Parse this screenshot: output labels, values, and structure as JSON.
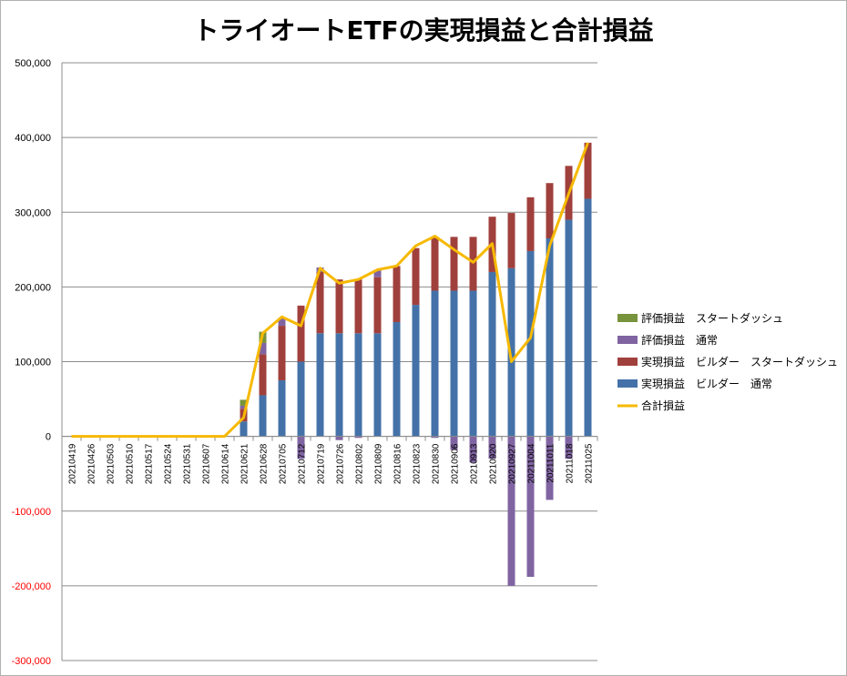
{
  "chart_data": {
    "type": "bar",
    "title": "トライオートETFの実現損益と合計損益",
    "ylim": [
      -300000,
      500000
    ],
    "yticks": [
      500000,
      400000,
      300000,
      200000,
      100000,
      0,
      -100000,
      -200000,
      -300000
    ],
    "ytick_labels": [
      "500,000",
      "400,000",
      "300,000",
      "200,000",
      "100,000",
      "0",
      "-100,000",
      "-200,000",
      "-300,000"
    ],
    "negative_tick_color": "#ff0000",
    "grid": true,
    "legend_position": "right",
    "categories": [
      "20210419",
      "20210426",
      "20210503",
      "20210510",
      "20210517",
      "20210524",
      "20210531",
      "20210607",
      "20210614",
      "20210621",
      "20210628",
      "20210705",
      "20210712",
      "20210719",
      "20210726",
      "20210802",
      "20210809",
      "20210816",
      "20210823",
      "20210830",
      "20210906",
      "20210913",
      "20210920",
      "20210927",
      "20211004",
      "20211011",
      "20211018",
      "20211025"
    ],
    "series": [
      {
        "name": "実現損益 ビルダー 通常",
        "color": "#4472a8",
        "kind": "bar",
        "values": [
          0,
          0,
          0,
          0,
          0,
          0,
          0,
          0,
          0,
          20000,
          55000,
          75000,
          100000,
          138000,
          138000,
          138000,
          138000,
          153000,
          176000,
          195000,
          195000,
          195000,
          220000,
          225000,
          248000,
          265000,
          290000,
          318000
        ]
      },
      {
        "name": "実現損益 ビルダー スタートダッシュ",
        "color": "#a0403c",
        "kind": "bar",
        "values": [
          0,
          0,
          0,
          0,
          0,
          0,
          0,
          0,
          0,
          17000,
          55000,
          73000,
          75000,
          82000,
          72000,
          72000,
          75000,
          75000,
          76000,
          72000,
          72000,
          72000,
          74000,
          74000,
          72000,
          74000,
          72000,
          75000
        ]
      },
      {
        "name": "評価損益 通常",
        "color": "#8064a2",
        "kind": "bar",
        "values": [
          0,
          0,
          0,
          0,
          0,
          0,
          0,
          0,
          0,
          4000,
          15000,
          10000,
          -30000,
          6000,
          -5000,
          -2000,
          10000,
          0,
          0,
          -2000,
          -18000,
          -35000,
          -30000,
          -200000,
          -188000,
          -85000,
          -30000,
          0
        ]
      },
      {
        "name": "評価損益 スタートダッシュ",
        "color": "#77933c",
        "kind": "bar",
        "values": [
          0,
          0,
          0,
          0,
          0,
          0,
          0,
          0,
          0,
          8000,
          15000,
          0,
          0,
          0,
          0,
          0,
          0,
          0,
          0,
          0,
          0,
          0,
          0,
          0,
          0,
          0,
          0,
          0
        ]
      },
      {
        "name": "合計損益",
        "color": "#f6b900",
        "kind": "line",
        "values": [
          0,
          0,
          0,
          0,
          0,
          0,
          0,
          0,
          0,
          25000,
          138000,
          160000,
          148000,
          225000,
          205000,
          210000,
          223000,
          228000,
          255000,
          268000,
          250000,
          233000,
          258000,
          100000,
          132000,
          255000,
          325000,
          393000
        ]
      }
    ]
  },
  "legend": {
    "items": [
      {
        "label": "評価損益　スタートダッシュ",
        "color": "#77933c",
        "kind": "bar"
      },
      {
        "label": "評価損益　通常",
        "color": "#8064a2",
        "kind": "bar"
      },
      {
        "label": "実現損益　ビルダー　スタートダッシュ",
        "color": "#a0403c",
        "kind": "bar"
      },
      {
        "label": "実現損益　ビルダー　通常",
        "color": "#4472a8",
        "kind": "bar"
      },
      {
        "label": "合計損益",
        "color": "#f6b900",
        "kind": "line"
      }
    ]
  }
}
